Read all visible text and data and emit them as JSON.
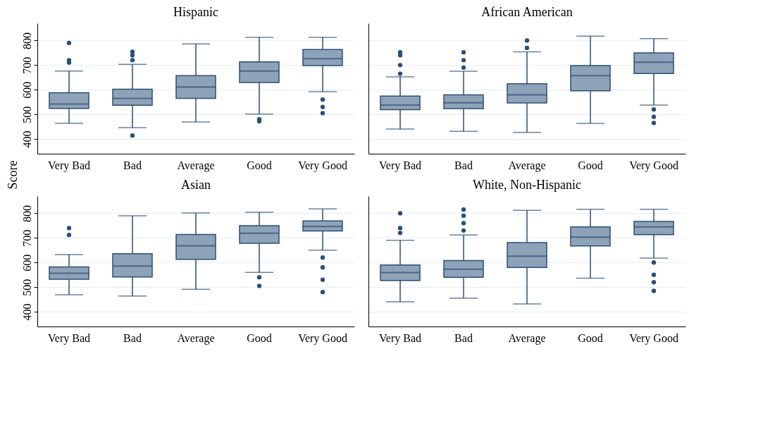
{
  "chart_data": [
    {
      "type": "box",
      "title": "Hispanic",
      "ylabel": "Score",
      "categories": [
        "Very Bad",
        "Bad",
        "Average",
        "Good",
        "Very Good"
      ],
      "color": "#8ea3b8",
      "ylim": [
        340,
        870
      ],
      "yticks": [
        400,
        500,
        600,
        700,
        800
      ],
      "grid": "y",
      "boxes": [
        {
          "low": 464,
          "q1": 524,
          "median": 542,
          "q3": 588,
          "high": 676,
          "outliers": [
            710,
            720,
            790
          ]
        },
        {
          "low": 446,
          "q1": 537,
          "median": 565,
          "q3": 602,
          "high": 703,
          "outliers": [
            414,
            720,
            740,
            754
          ]
        },
        {
          "low": 469,
          "q1": 565,
          "median": 611,
          "q3": 657,
          "high": 786
        },
        {
          "low": 501,
          "q1": 629,
          "median": 676,
          "q3": 713,
          "high": 813,
          "outliers": [
            472,
            480
          ]
        },
        {
          "low": 592,
          "q1": 698,
          "median": 726,
          "q3": 763,
          "high": 813,
          "outliers": [
            505,
            530,
            560
          ]
        }
      ]
    },
    {
      "type": "box",
      "title": "African American",
      "categories": [
        "Very Bad",
        "Bad",
        "Average",
        "Good",
        "Very Good"
      ],
      "color": "#8ea3b8",
      "ylim": [
        340,
        870
      ],
      "yticks": [
        400,
        500,
        600,
        700,
        800
      ],
      "grid": "y",
      "tick_labels": "x",
      "boxes": [
        {
          "low": 440,
          "q1": 519,
          "median": 538,
          "q3": 574,
          "high": 652,
          "outliers": [
            665,
            700,
            740,
            752
          ]
        },
        {
          "low": 431,
          "q1": 523,
          "median": 547,
          "q3": 579,
          "high": 675,
          "outliers": [
            690,
            720,
            752
          ]
        },
        {
          "low": 427,
          "q1": 546,
          "median": 579,
          "q3": 624,
          "high": 754,
          "outliers": [
            770,
            800
          ]
        },
        {
          "low": 463,
          "q1": 596,
          "median": 657,
          "q3": 698,
          "high": 818
        },
        {
          "low": 538,
          "q1": 666,
          "median": 712,
          "q3": 750,
          "high": 808,
          "outliers": [
            465,
            490,
            520
          ]
        }
      ]
    },
    {
      "type": "box",
      "title": "Asian",
      "categories": [
        "Very Bad",
        "Bad",
        "Average",
        "Good",
        "Very Good"
      ],
      "color": "#8ea3b8",
      "ylim": [
        340,
        870
      ],
      "yticks": [
        400,
        500,
        600,
        700,
        800
      ],
      "grid": "y",
      "boxes": [
        {
          "low": 469,
          "q1": 532,
          "median": 556,
          "q3": 582,
          "high": 632,
          "outliers": [
            712,
            740
          ]
        },
        {
          "low": 464,
          "q1": 541,
          "median": 586,
          "q3": 636,
          "high": 790
        },
        {
          "low": 491,
          "q1": 613,
          "median": 668,
          "q3": 714,
          "high": 801
        },
        {
          "low": 560,
          "q1": 678,
          "median": 719,
          "q3": 750,
          "high": 804,
          "outliers": [
            505,
            540
          ]
        },
        {
          "low": 650,
          "q1": 728,
          "median": 746,
          "q3": 769,
          "high": 818,
          "outliers": [
            480,
            530,
            580,
            620
          ]
        }
      ]
    },
    {
      "type": "box",
      "title": "White, Non-Hispanic",
      "categories": [
        "Very Bad",
        "Bad",
        "Average",
        "Good",
        "Very Good"
      ],
      "color": "#8ea3b8",
      "ylim": [
        340,
        870
      ],
      "yticks": [
        400,
        500,
        600,
        700,
        800
      ],
      "grid": "y",
      "tick_labels": "x",
      "boxes": [
        {
          "low": 440,
          "q1": 527,
          "median": 559,
          "q3": 590,
          "high": 690,
          "outliers": [
            720,
            740,
            800
          ]
        },
        {
          "low": 455,
          "q1": 540,
          "median": 573,
          "q3": 608,
          "high": 712,
          "outliers": [
            730,
            760,
            790,
            815
          ]
        },
        {
          "low": 432,
          "q1": 580,
          "median": 626,
          "q3": 681,
          "high": 812
        },
        {
          "low": 536,
          "q1": 667,
          "median": 703,
          "q3": 745,
          "high": 816
        },
        {
          "low": 618,
          "q1": 713,
          "median": 745,
          "q3": 767,
          "high": 816,
          "outliers": [
            485,
            520,
            550,
            600
          ]
        }
      ]
    }
  ]
}
